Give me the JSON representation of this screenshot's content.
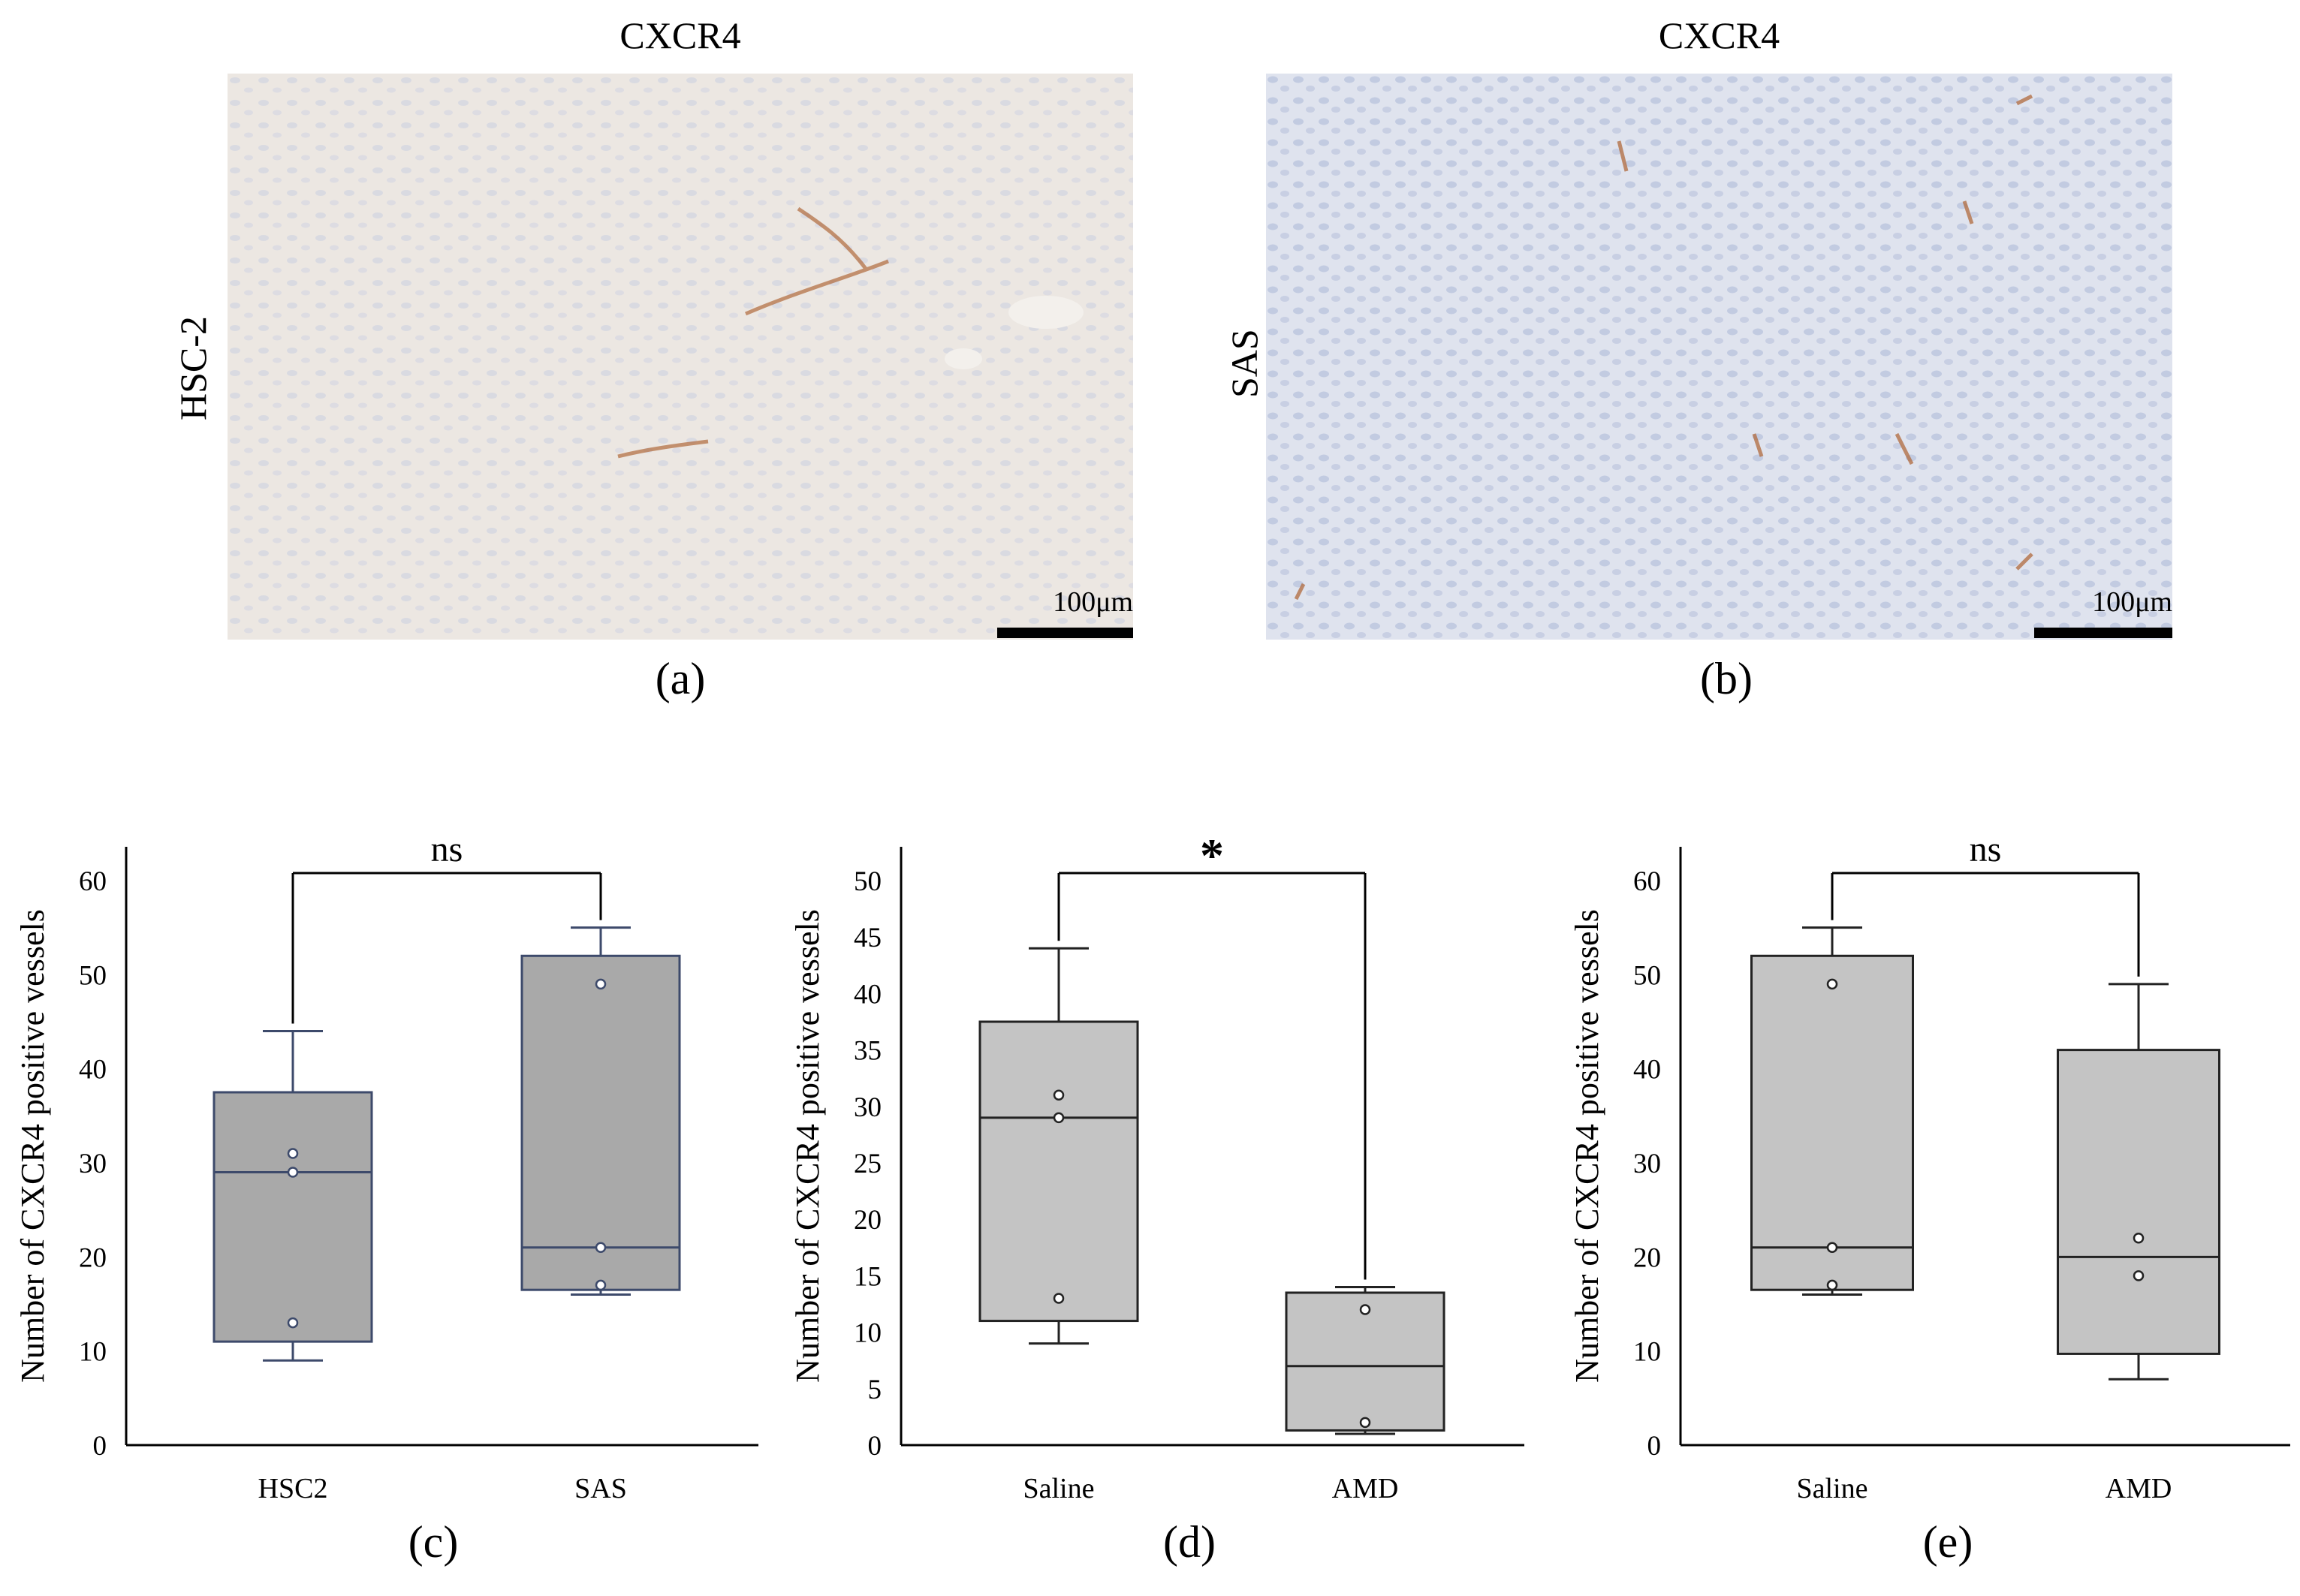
{
  "panels": {
    "a": {
      "title": "CXCR4",
      "row_label": "HSC-2",
      "scale_label": "100μm",
      "label": "(a)",
      "label_letter": "a",
      "tissue_color": "#ece7e2"
    },
    "b": {
      "title": "CXCR4",
      "row_label": "SAS",
      "scale_label": "100μm",
      "label": "(b)",
      "label_letter": "b",
      "tissue_color": "#dfe3ee"
    }
  },
  "chart_labels": {
    "c": "(c)",
    "d": "(d)",
    "e": "(e)"
  },
  "chart_data": [
    {
      "id": "c",
      "type": "box",
      "ylabel": "Number of CXCR4 positive vessels",
      "ylim": [
        0,
        60
      ],
      "yticks": [
        0,
        10,
        20,
        30,
        40,
        50,
        60
      ],
      "categories": [
        "HSC2",
        "SAS"
      ],
      "box_fill": "#a9a9a9",
      "box_stroke": "#3d4a6b",
      "significance": "ns",
      "boxes": [
        {
          "min": 9,
          "q1": 11,
          "median": 29,
          "q3": 37.5,
          "max": 44,
          "points": [
            31,
            29,
            13
          ]
        },
        {
          "min": 16,
          "q1": 16.5,
          "median": 21,
          "q3": 52,
          "max": 55,
          "points": [
            49,
            21,
            17
          ]
        }
      ]
    },
    {
      "id": "d",
      "type": "box",
      "ylabel": "Number of CXCR4 positive vessels",
      "ylim": [
        0,
        50
      ],
      "yticks": [
        0,
        5,
        10,
        15,
        20,
        25,
        30,
        35,
        40,
        45,
        50
      ],
      "categories": [
        "Saline",
        "AMD"
      ],
      "box_fill": "#c4c4c4",
      "box_stroke": "#222222",
      "significance": "*",
      "boxes": [
        {
          "min": 9,
          "q1": 11,
          "median": 29,
          "q3": 37.5,
          "max": 44,
          "points": [
            31,
            29,
            13
          ]
        },
        {
          "min": 1,
          "q1": 1.3,
          "median": 7,
          "q3": 13.5,
          "max": 14,
          "points": [
            12,
            2
          ]
        }
      ]
    },
    {
      "id": "e",
      "type": "box",
      "ylabel": "Number of CXCR4 positive vessels",
      "ylim": [
        0,
        60
      ],
      "yticks": [
        0,
        10,
        20,
        30,
        40,
        50,
        60
      ],
      "categories": [
        "Saline",
        "AMD"
      ],
      "box_fill": "#c4c4c4",
      "box_stroke": "#222222",
      "significance": "ns",
      "boxes": [
        {
          "min": 16,
          "q1": 16.5,
          "median": 21,
          "q3": 52,
          "max": 55,
          "points": [
            49,
            21,
            17
          ]
        },
        {
          "min": 7,
          "q1": 9.7,
          "median": 20,
          "q3": 42,
          "max": 49,
          "points": [
            22,
            18
          ]
        }
      ]
    }
  ]
}
